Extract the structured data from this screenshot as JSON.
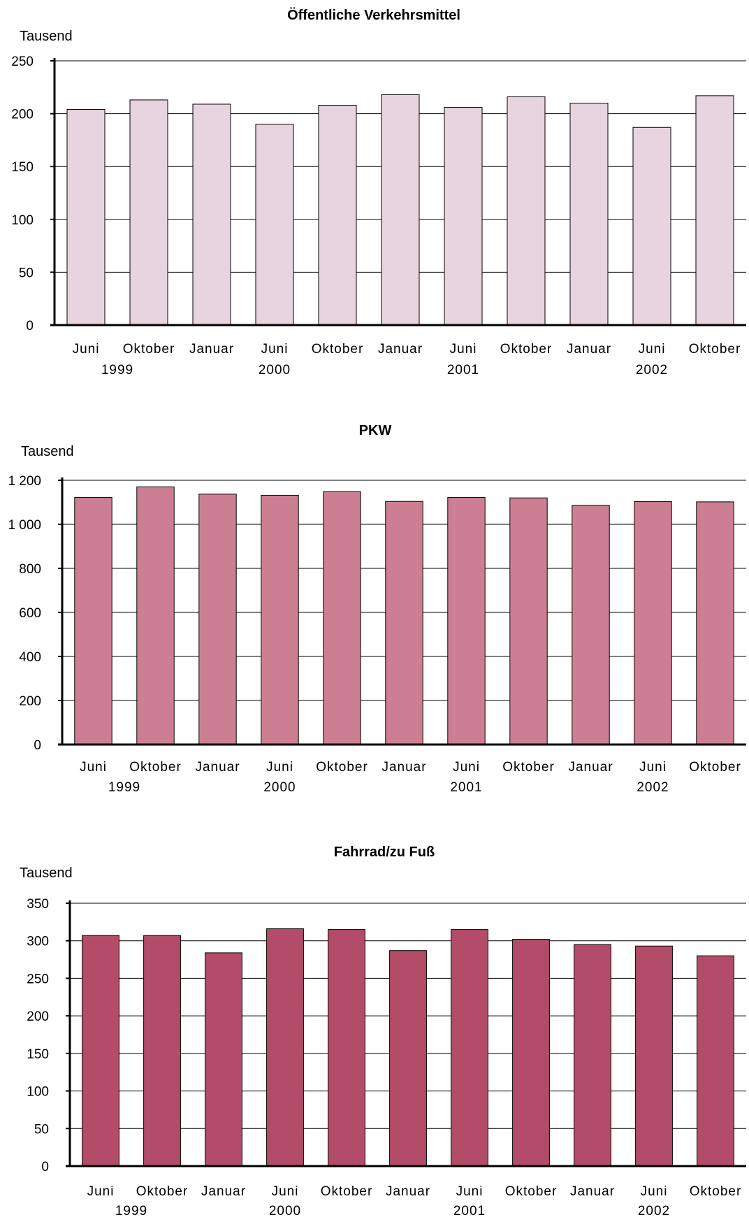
{
  "chart_data": [
    {
      "type": "bar",
      "title": "Öffentliche Verkehrsmittel",
      "unit_label": "Tausend",
      "categories": [
        "Juni",
        "Oktober",
        "Januar",
        "Juni",
        "Oktober",
        "Januar",
        "Juni",
        "Oktober",
        "Januar",
        "Juni",
        "Oktober"
      ],
      "year_labels": [
        {
          "label": "1999",
          "index": 0.5
        },
        {
          "label": "2000",
          "index": 3
        },
        {
          "label": "2001",
          "index": 6
        },
        {
          "label": "2002",
          "index": 9
        }
      ],
      "values": [
        204,
        213,
        209,
        190,
        208,
        218,
        206,
        216,
        210,
        187,
        217
      ],
      "ylim": [
        0,
        250
      ],
      "yticks": [
        0,
        50,
        100,
        150,
        200,
        250
      ],
      "ytick_labels": [
        "0",
        "50",
        "100",
        "150",
        "200",
        "250"
      ],
      "grid": true,
      "bar_color": "#e8d4de"
    },
    {
      "type": "bar",
      "title": "PKW",
      "unit_label": "Tausend",
      "categories": [
        "Juni",
        "Oktober",
        "Januar",
        "Juni",
        "Oktober",
        "Januar",
        "Juni",
        "Oktober",
        "Januar",
        "Juni",
        "Oktober"
      ],
      "year_labels": [
        {
          "label": "1999",
          "index": 0.5
        },
        {
          "label": "2000",
          "index": 3
        },
        {
          "label": "2001",
          "index": 6
        },
        {
          "label": "2002",
          "index": 9
        }
      ],
      "values": [
        1122,
        1170,
        1137,
        1132,
        1148,
        1104,
        1122,
        1120,
        1086,
        1103,
        1102
      ],
      "ylim": [
        0,
        1200
      ],
      "yticks": [
        0,
        200,
        400,
        600,
        800,
        1000,
        1200
      ],
      "ytick_labels": [
        "0",
        "200",
        "400",
        "600",
        "800",
        "1 000",
        "1 200"
      ],
      "grid": true,
      "bar_color": "#cc7f93"
    },
    {
      "type": "bar",
      "title": "Fahrrad/zu Fuß",
      "unit_label": "Tausend",
      "categories": [
        "Juni",
        "Oktober",
        "Januar",
        "Juni",
        "Oktober",
        "Januar",
        "Juni",
        "Oktober",
        "Januar",
        "Juni",
        "Oktober"
      ],
      "year_labels": [
        {
          "label": "1999",
          "index": 0.5
        },
        {
          "label": "2000",
          "index": 3
        },
        {
          "label": "2001",
          "index": 6
        },
        {
          "label": "2002",
          "index": 9
        }
      ],
      "values": [
        307,
        307,
        284,
        316,
        315,
        287,
        315,
        302,
        295,
        293,
        280
      ],
      "ylim": [
        0,
        350
      ],
      "yticks": [
        0,
        50,
        100,
        150,
        200,
        250,
        300,
        350
      ],
      "ytick_labels": [
        "0",
        "50",
        "100",
        "150",
        "200",
        "250",
        "300",
        "350"
      ],
      "grid": true,
      "bar_color": "#b34c68"
    }
  ]
}
